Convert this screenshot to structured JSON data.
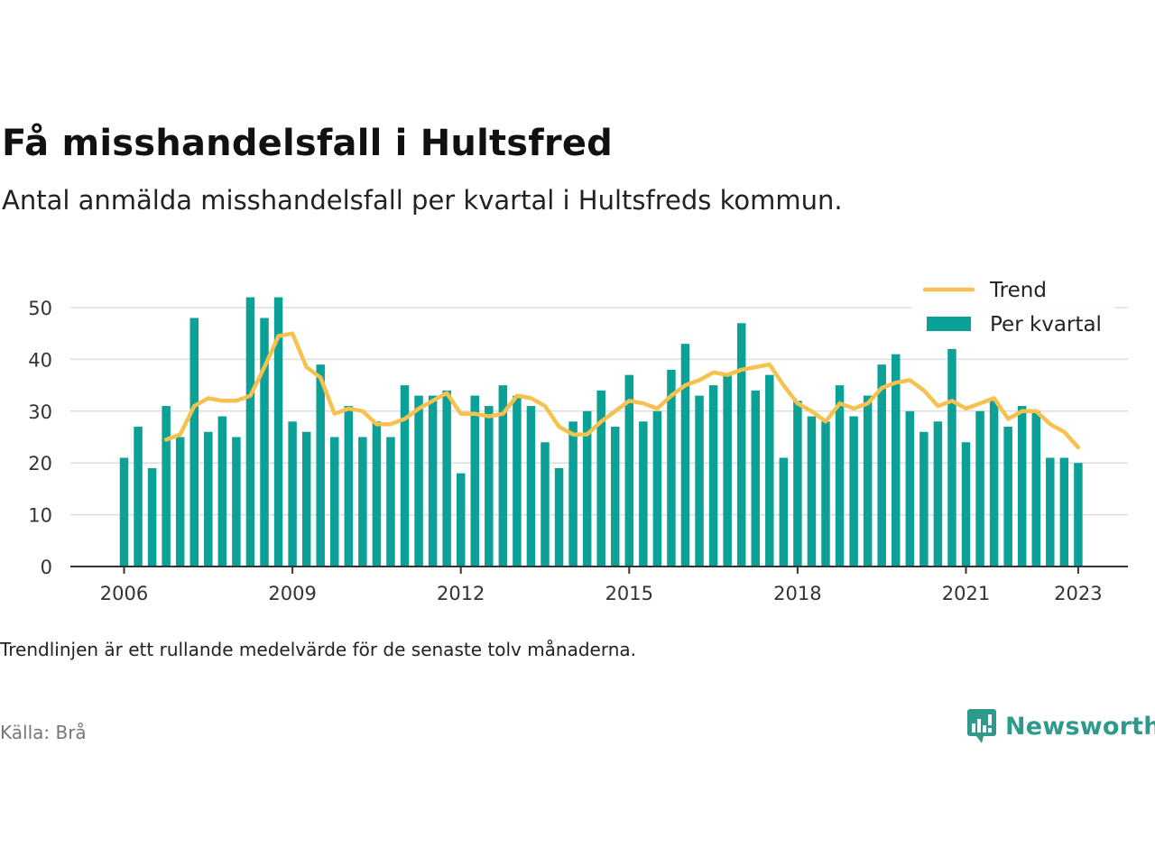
{
  "title": "Få misshandelsfall i Hultsfred",
  "subtitle": "Antal anmälda misshandelsfall per kvartal i Hultsfreds kommun.",
  "note": "Trendlinjen är ett rullande medelvärde för de senaste tolv månaderna.",
  "source": "Källa: Brå",
  "logo_text": "Newsworthy",
  "colors": {
    "bar": "#0ca197",
    "trend": "#f6c14e",
    "grid": "#dddddd",
    "axis": "#333333",
    "logo": "#2d9a8c"
  },
  "chart_data": {
    "type": "bar",
    "x_start": "2006 Q1",
    "ylim": [
      0,
      55
    ],
    "yticks": [
      0,
      10,
      20,
      30,
      40,
      50
    ],
    "xtick_labels": [
      "2006",
      "2009",
      "2012",
      "2015",
      "2018",
      "2021",
      "2023"
    ],
    "grid": "horizontal",
    "legend": {
      "position": "top-right",
      "entries": [
        "Trend",
        "Per kvartal"
      ]
    },
    "series": [
      {
        "name": "Per kvartal",
        "type": "bar",
        "values": [
          21,
          27,
          19,
          31,
          25,
          48,
          26,
          29,
          25,
          52,
          48,
          52,
          28,
          26,
          39,
          25,
          31,
          25,
          28,
          25,
          35,
          33,
          33,
          34,
          18,
          33,
          31,
          35,
          33,
          31,
          24,
          19,
          28,
          30,
          34,
          27,
          37,
          28,
          30,
          38,
          43,
          33,
          35,
          37,
          47,
          34,
          37,
          21,
          32,
          29,
          28,
          35,
          29,
          33,
          39,
          41,
          30,
          26,
          28,
          42,
          24,
          30,
          32,
          27,
          31,
          30,
          21,
          21,
          20
        ]
      },
      {
        "name": "Trend",
        "type": "line",
        "start_index": 3,
        "values": [
          24.5,
          25.5,
          31,
          32.5,
          32,
          32,
          33,
          38.5,
          44.5,
          45,
          38.5,
          36.5,
          29.5,
          30.5,
          30,
          27.5,
          27.5,
          28.5,
          30.5,
          32,
          33.5,
          29.5,
          29.5,
          29,
          29.5,
          33,
          32.5,
          31,
          27,
          25.5,
          25.5,
          28,
          30,
          32,
          31.5,
          30.5,
          33,
          35,
          36,
          37.5,
          37,
          38,
          38.5,
          39,
          35,
          31.5,
          30,
          28,
          31.5,
          30.5,
          31.5,
          34.5,
          35.5,
          36,
          34,
          31,
          32,
          30.5,
          31.5,
          32.5,
          28.5,
          30,
          30,
          27.5,
          26,
          23
        ]
      }
    ]
  }
}
